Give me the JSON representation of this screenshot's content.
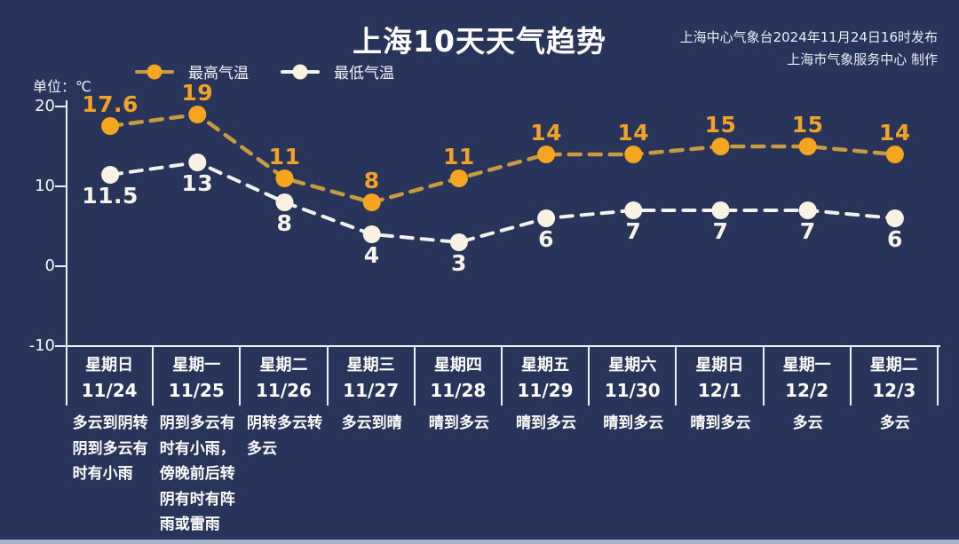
{
  "title": "上海10天天气趋势",
  "publisher": {
    "line1": "上海中心气象台2024年11月24日16时发布",
    "line2": "上海市气象服务中心 制作"
  },
  "unit_label": "单位：℃",
  "legend": {
    "high": "最高气温",
    "low": "最低气温"
  },
  "colors": {
    "background": "#283459",
    "high_marker": "#f5a61e",
    "high_line": "#c79b41",
    "high_label_text": "#f2a327",
    "low_marker": "#f8f2e3",
    "low_line": "#f2f2f2",
    "text": "#ffffff",
    "axis": "#eef2f8",
    "bottom_bar": "#a4b2c6"
  },
  "chart_data": {
    "type": "line",
    "categories": [
      "11/24",
      "11/25",
      "11/26",
      "11/27",
      "11/28",
      "11/29",
      "11/30",
      "12/1",
      "12/2",
      "12/3"
    ],
    "series": [
      {
        "name": "最高气温",
        "values": [
          17.6,
          19,
          11,
          8,
          11,
          14,
          14,
          15,
          15,
          14
        ]
      },
      {
        "name": "最低气温",
        "values": [
          11.5,
          13,
          8,
          4,
          3,
          6,
          7,
          7,
          7,
          6
        ]
      }
    ],
    "ylabel": "单位：℃",
    "yticks": [
      20,
      10,
      0,
      -10
    ],
    "ylim": [
      -10,
      20
    ],
    "grid": false,
    "legend_position": "top-left",
    "line_style": "dashed"
  },
  "days": [
    {
      "weekday": "星期日",
      "date": "11/24",
      "weather": "多云到阴转阴到多云有时有小雨"
    },
    {
      "weekday": "星期一",
      "date": "11/25",
      "weather": "阴到多云有时有小雨，傍晚前后转阴有时有阵雨或雷雨"
    },
    {
      "weekday": "星期二",
      "date": "11/26",
      "weather": "阴转多云转多云"
    },
    {
      "weekday": "星期三",
      "date": "11/27",
      "weather": "多云到晴"
    },
    {
      "weekday": "星期四",
      "date": "11/28",
      "weather": "晴到多云"
    },
    {
      "weekday": "星期五",
      "date": "11/29",
      "weather": "晴到多云"
    },
    {
      "weekday": "星期六",
      "date": "11/30",
      "weather": "晴到多云"
    },
    {
      "weekday": "星期日",
      "date": "12/1",
      "weather": "晴到多云"
    },
    {
      "weekday": "星期一",
      "date": "12/2",
      "weather": "多云"
    },
    {
      "weekday": "星期二",
      "date": "12/3",
      "weather": "多云"
    }
  ]
}
